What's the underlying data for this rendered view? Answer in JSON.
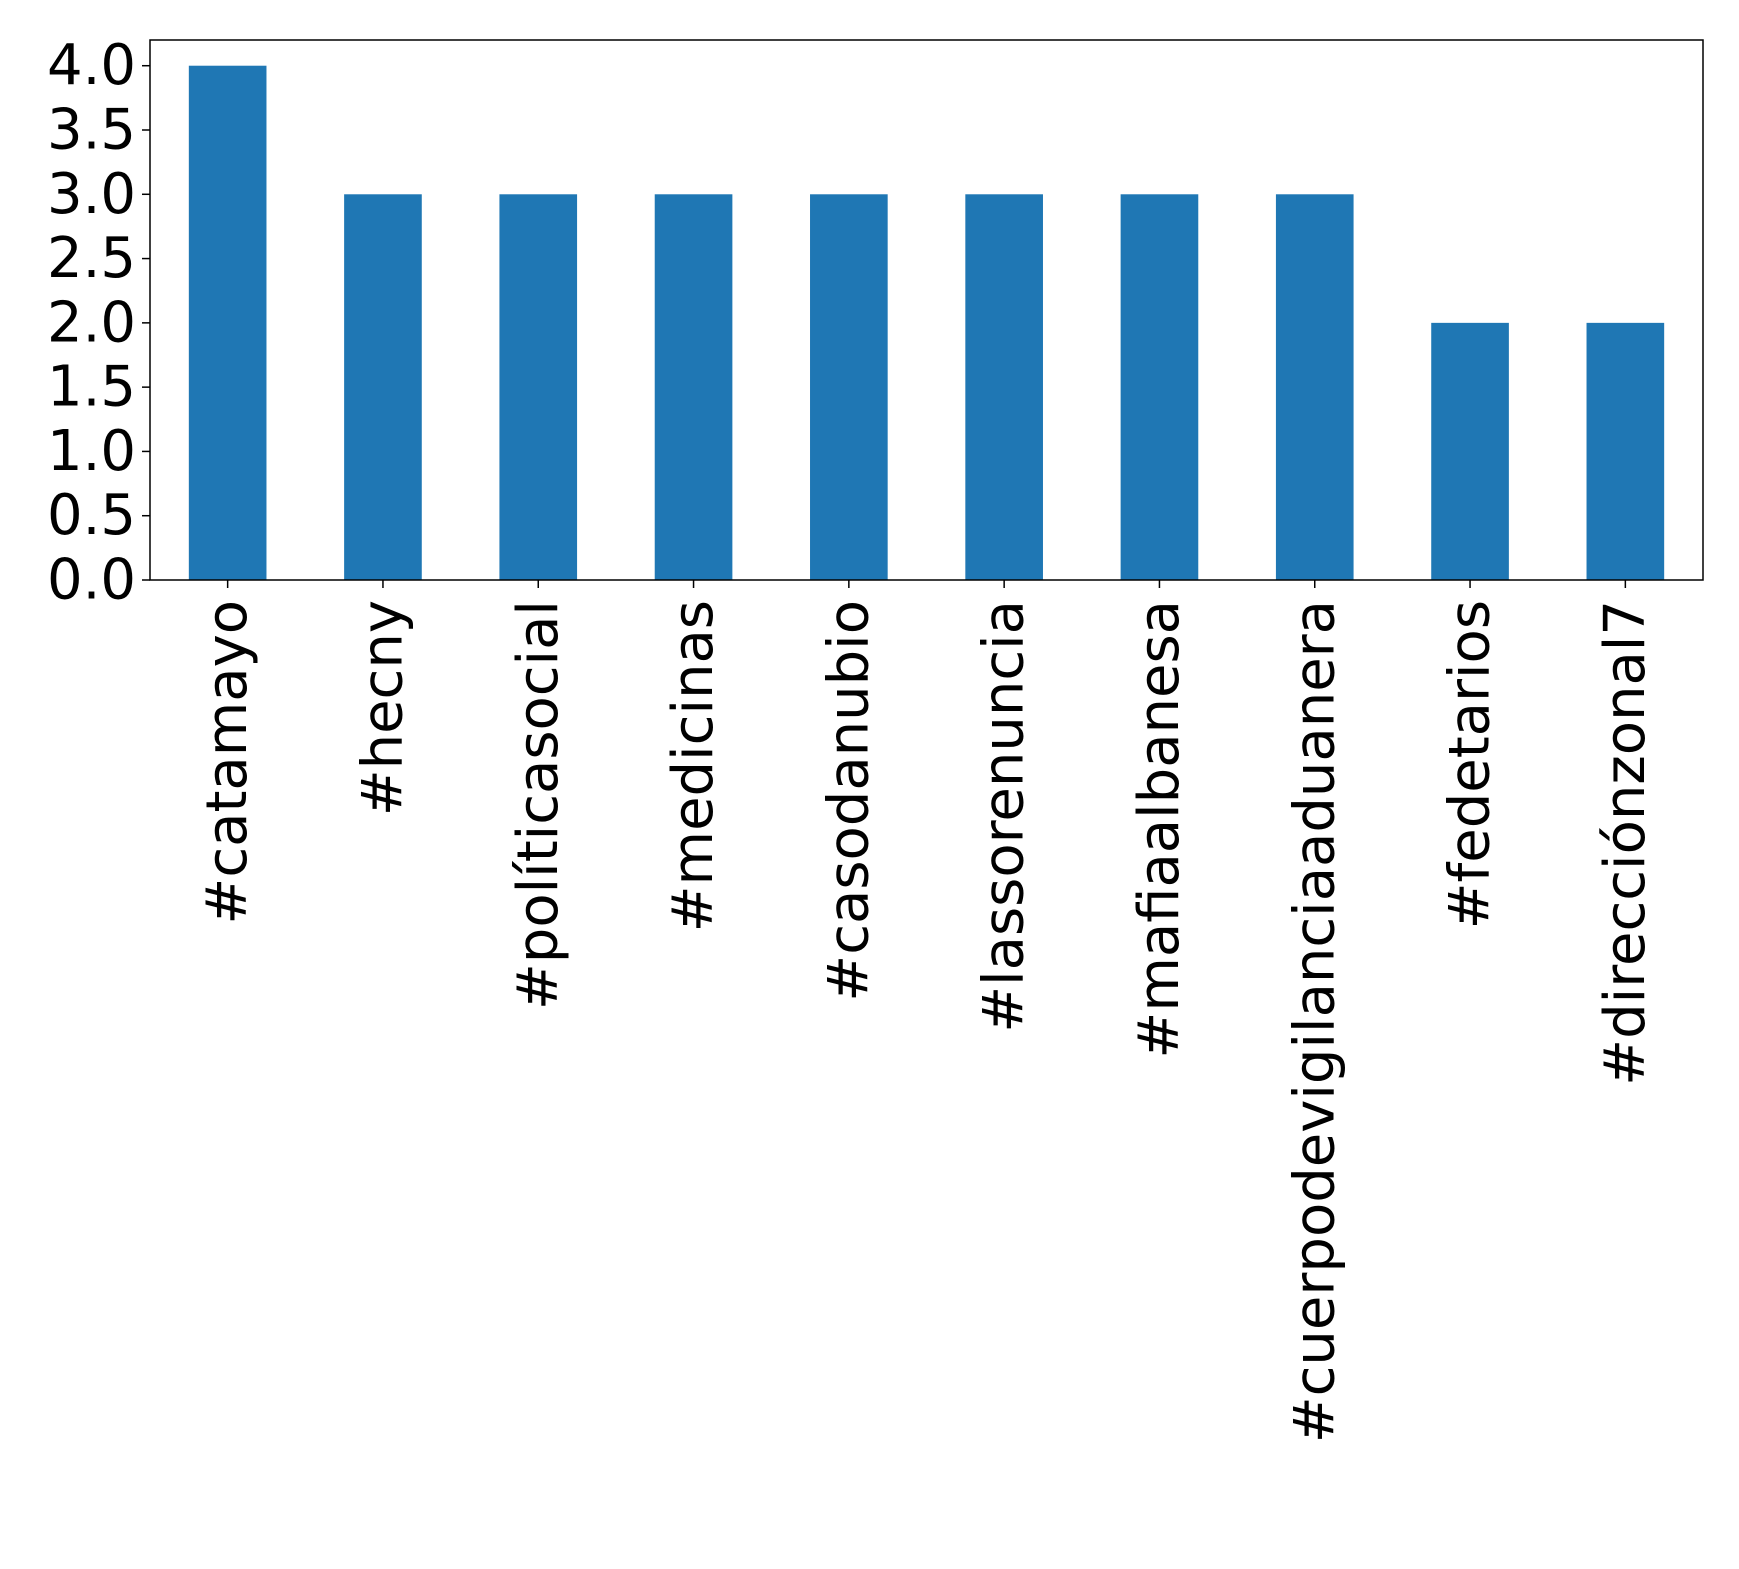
{
  "chart_data": {
    "type": "bar",
    "title": "",
    "xlabel": "",
    "ylabel": "",
    "categories": [
      "#catamayo",
      "#hecny",
      "#políticasocial",
      "#medicinas",
      "#casodanubio",
      "#lassorenuncia",
      "#mafiaalbanesa",
      "#cuerpodevigilanciaaduanera",
      "#fedetarios",
      "#direcciónzonal7"
    ],
    "values": [
      4,
      3,
      3,
      3,
      3,
      3,
      3,
      3,
      2,
      2
    ],
    "ylim": [
      0,
      4.2
    ],
    "yticks": [
      0.0,
      0.5,
      1.0,
      1.5,
      2.0,
      2.5,
      3.0,
      3.5,
      4.0
    ],
    "ytick_labels": [
      "0.0",
      "0.5",
      "1.0",
      "1.5",
      "2.0",
      "2.5",
      "3.0",
      "3.5",
      "4.0"
    ],
    "bar_color": "#1f77b4",
    "grid": false,
    "legend": "none",
    "x_tick_rotation": "vertical"
  }
}
